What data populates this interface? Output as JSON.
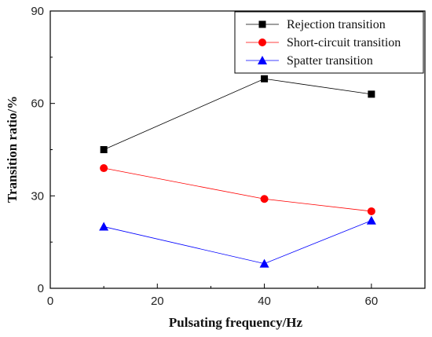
{
  "chart_data": {
    "type": "line",
    "xlabel": "Pulsating frequency/Hz",
    "ylabel": "Transition ratio/%",
    "xlim": [
      0,
      70
    ],
    "ylim": [
      0,
      90
    ],
    "x_ticks": [
      "0",
      "20",
      "40",
      "60"
    ],
    "y_ticks": [
      "0",
      "30",
      "60",
      "90"
    ],
    "x": [
      10,
      40,
      60
    ],
    "series": [
      {
        "name": "Rejection transition",
        "values": [
          45,
          68,
          63
        ],
        "color": "#000000",
        "marker": "square"
      },
      {
        "name": "Short-circuit transition",
        "values": [
          39,
          29,
          25
        ],
        "color": "#ff0000",
        "marker": "circle"
      },
      {
        "name": "Spatter transition",
        "values": [
          20,
          8,
          22
        ],
        "color": "#0000ff",
        "marker": "triangle"
      }
    ],
    "legend_position": "top-right",
    "grid": false
  }
}
